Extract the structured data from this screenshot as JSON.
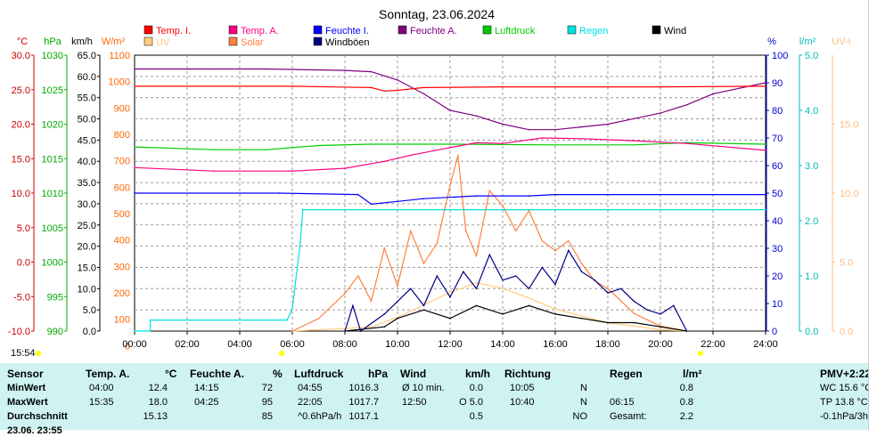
{
  "title": "Sonntag, 23.06.2024",
  "colors": {
    "temp_i": "#ff0000",
    "temp_a": "#ff0080",
    "feuchte_i": "#0000ff",
    "feuchte_a": "#800080",
    "luftdruck": "#00cc00",
    "regen": "#00e0e0",
    "wind": "#000000",
    "uv": "#ffcc80",
    "solar": "#ff8040",
    "windboeen": "#000080",
    "grid": "#9a9a9a",
    "panel_bg": "#cff3f3"
  },
  "legend": [
    {
      "label": "Temp. I.",
      "color": "#ff0000",
      "text_color": "#ff0000"
    },
    {
      "label": "Temp. A.",
      "color": "#ff0080",
      "text_color": "#ff0080"
    },
    {
      "label": "Feuchte I.",
      "color": "#0000ff",
      "text_color": "#0000ff"
    },
    {
      "label": "Feuchte A.",
      "color": "#800080",
      "text_color": "#800080"
    },
    {
      "label": "Luftdruck",
      "color": "#00cc00",
      "text_color": "#00cc00"
    },
    {
      "label": "Regen",
      "color": "#00e0e0",
      "text_color": "#00e0e0"
    },
    {
      "label": "Wind",
      "color": "#000000",
      "text_color": "#000000"
    },
    {
      "label": "UV",
      "color": "#ffcc80",
      "text_color": "#ffcc80"
    },
    {
      "label": "Solar",
      "color": "#ff8040",
      "text_color": "#ff8040"
    },
    {
      "label": "Windböen",
      "color": "#000080",
      "text_color": "#000000"
    }
  ],
  "axes": {
    "temp": {
      "unit": "°C",
      "ticks": [
        "30.0",
        "25.0",
        "20.0",
        "15.0",
        "10.0",
        "5.0",
        "0.0",
        "-5.0",
        "-10.0"
      ]
    },
    "pressure": {
      "unit": "hPa",
      "ticks": [
        "1030",
        "1025",
        "1020",
        "1015",
        "1010",
        "1005",
        "1000",
        "995",
        "990"
      ]
    },
    "wind": {
      "unit": "km/h",
      "ticks": [
        "65.0",
        "60.0",
        "55.0",
        "50.0",
        "45.0",
        "40.0",
        "35.0",
        "30.0",
        "25.0",
        "20.0",
        "15.0",
        "10.0",
        "5.0",
        "0.0"
      ]
    },
    "solar": {
      "unit": "W/m²",
      "ticks": [
        "1100",
        "1000",
        "900",
        "800",
        "700",
        "600",
        "500",
        "400",
        "300",
        "200",
        "100",
        "0"
      ]
    },
    "humidity": {
      "unit": "%",
      "ticks": [
        "100",
        "90",
        "80",
        "70",
        "60",
        "50",
        "40",
        "30",
        "20",
        "10",
        "0"
      ]
    },
    "rain": {
      "unit": "l/m²",
      "ticks": [
        "5.0",
        "4.0",
        "3.0",
        "2.0",
        "1.0",
        "0.0"
      ]
    },
    "uv": {
      "unit": "UV-I",
      "ticks": [
        "15.0",
        "10.0",
        "5.0",
        "0.0"
      ]
    },
    "time": {
      "ticks": [
        "00:00",
        "02:00",
        "04:00",
        "06:00",
        "08:00",
        "10:00",
        "12:00",
        "14:00",
        "16:00",
        "18:00",
        "20:00",
        "22:00",
        "24:00"
      ]
    }
  },
  "current_time": "15:54",
  "chart_data": {
    "type": "line",
    "title": "Sonntag, 23.06.2024",
    "x_unit": "hour of day",
    "xlim": [
      0,
      24
    ],
    "series": [
      {
        "name": "Temp. I.",
        "axis": "temp °C",
        "points": [
          [
            0,
            25.5
          ],
          [
            6,
            25.5
          ],
          [
            9,
            25.3
          ],
          [
            9.5,
            24.8
          ],
          [
            10,
            24.9
          ],
          [
            11,
            25.3
          ],
          [
            14,
            25.4
          ],
          [
            20,
            25.4
          ],
          [
            24,
            25.5
          ]
        ]
      },
      {
        "name": "Temp. A.",
        "axis": "temp °C",
        "points": [
          [
            0,
            13.7
          ],
          [
            3,
            13.2
          ],
          [
            6,
            13.2
          ],
          [
            8,
            13.6
          ],
          [
            9.5,
            14.6
          ],
          [
            10.5,
            15.5
          ],
          [
            12,
            16.6
          ],
          [
            13,
            17.3
          ],
          [
            14,
            17.2
          ],
          [
            15.5,
            18.0
          ],
          [
            17,
            17.9
          ],
          [
            19,
            17.6
          ],
          [
            21,
            17.2
          ],
          [
            24,
            16.2
          ]
        ]
      },
      {
        "name": "Feuchte I.",
        "axis": "humidity %",
        "points": [
          [
            0,
            50
          ],
          [
            5.5,
            50
          ],
          [
            8.5,
            49.5
          ],
          [
            9,
            46
          ],
          [
            10,
            47
          ],
          [
            11,
            48
          ],
          [
            13,
            49
          ],
          [
            15,
            49
          ],
          [
            16,
            49.5
          ],
          [
            18,
            49.5
          ],
          [
            24,
            49.5
          ]
        ]
      },
      {
        "name": "Feuchte A.",
        "axis": "humidity %",
        "points": [
          [
            0,
            95
          ],
          [
            3,
            95
          ],
          [
            5,
            95
          ],
          [
            8,
            94.5
          ],
          [
            9,
            94
          ],
          [
            10,
            91
          ],
          [
            11,
            86
          ],
          [
            12,
            80
          ],
          [
            13,
            78
          ],
          [
            14,
            75
          ],
          [
            15,
            73
          ],
          [
            16,
            73
          ],
          [
            17,
            74
          ],
          [
            18,
            75
          ],
          [
            19,
            77
          ],
          [
            20,
            79
          ],
          [
            21,
            82
          ],
          [
            22,
            86
          ],
          [
            23,
            88
          ],
          [
            24,
            90
          ]
        ]
      },
      {
        "name": "Luftdruck",
        "axis": "pressure hPa",
        "points": [
          [
            0,
            1016.7
          ],
          [
            3,
            1016.3
          ],
          [
            5,
            1016.3
          ],
          [
            7,
            1016.9
          ],
          [
            9,
            1017.1
          ],
          [
            12,
            1017.1
          ],
          [
            16,
            1017.0
          ],
          [
            19,
            1017.0
          ],
          [
            21,
            1017.3
          ],
          [
            24,
            1017.1
          ]
        ]
      },
      {
        "name": "Regen",
        "axis": "rain l/m²",
        "points": [
          [
            0,
            0.0
          ],
          [
            0.6,
            0.0
          ],
          [
            0.6,
            0.2
          ],
          [
            5.8,
            0.2
          ],
          [
            6.0,
            0.4
          ],
          [
            6.3,
            1.6
          ],
          [
            6.4,
            2.2
          ],
          [
            24,
            2.2
          ]
        ]
      },
      {
        "name": "Solar",
        "axis": "solar W/m²",
        "points": [
          [
            6,
            0
          ],
          [
            7,
            50
          ],
          [
            8,
            150
          ],
          [
            8.5,
            220
          ],
          [
            9,
            120
          ],
          [
            9.5,
            330
          ],
          [
            10,
            180
          ],
          [
            10.5,
            400
          ],
          [
            11,
            270
          ],
          [
            11.5,
            350
          ],
          [
            12,
            580
          ],
          [
            12.3,
            700
          ],
          [
            12.6,
            400
          ],
          [
            13,
            300
          ],
          [
            13.5,
            560
          ],
          [
            14,
            500
          ],
          [
            14.5,
            400
          ],
          [
            15,
            480
          ],
          [
            15.5,
            360
          ],
          [
            16,
            320
          ],
          [
            16.5,
            360
          ],
          [
            17,
            270
          ],
          [
            17.5,
            200
          ],
          [
            18,
            170
          ],
          [
            18.5,
            120
          ],
          [
            19,
            70
          ],
          [
            20,
            20
          ],
          [
            21,
            0
          ]
        ]
      },
      {
        "name": "UV",
        "axis": "UV-I",
        "points": [
          [
            6,
            0
          ],
          [
            9,
            0.3
          ],
          [
            10,
            1.0
          ],
          [
            12,
            2.8
          ],
          [
            13,
            3.5
          ],
          [
            14,
            3.1
          ],
          [
            15,
            2.4
          ],
          [
            16,
            1.6
          ],
          [
            18,
            0.6
          ],
          [
            20,
            0.1
          ],
          [
            21,
            0
          ]
        ]
      },
      {
        "name": "Wind",
        "axis": "wind km/h",
        "points": [
          [
            8,
            0
          ],
          [
            9.5,
            1
          ],
          [
            10,
            3
          ],
          [
            11,
            5
          ],
          [
            12,
            3
          ],
          [
            13,
            6
          ],
          [
            14,
            4
          ],
          [
            15,
            6
          ],
          [
            16,
            4
          ],
          [
            17,
            3
          ],
          [
            18,
            2
          ],
          [
            19,
            2
          ],
          [
            20,
            1
          ],
          [
            21,
            0
          ]
        ]
      },
      {
        "name": "Windböen",
        "axis": "wind km/h",
        "points": [
          [
            8,
            0
          ],
          [
            8.3,
            6
          ],
          [
            8.6,
            0
          ],
          [
            9.5,
            4
          ],
          [
            10.5,
            10
          ],
          [
            11,
            6
          ],
          [
            11.5,
            13
          ],
          [
            12,
            8
          ],
          [
            12.5,
            14
          ],
          [
            13,
            10
          ],
          [
            13.5,
            18
          ],
          [
            14,
            12
          ],
          [
            14.5,
            13
          ],
          [
            15,
            10
          ],
          [
            15.5,
            15
          ],
          [
            16,
            11
          ],
          [
            16.5,
            19
          ],
          [
            17,
            14
          ],
          [
            17.5,
            12
          ],
          [
            18,
            9
          ],
          [
            18.5,
            10
          ],
          [
            19,
            7
          ],
          [
            19.5,
            5
          ],
          [
            20,
            4
          ],
          [
            20.5,
            6
          ],
          [
            21,
            0
          ]
        ]
      }
    ]
  },
  "stats": {
    "headers": {
      "sensor": "Sensor",
      "temp_a": "Temp. A.",
      "temp_unit": "°C",
      "feuchte": "Feuchte A.",
      "feuchte_unit": "%",
      "luftdruck": "Luftdruck",
      "luftdruck_unit": "hPa",
      "wind": "Wind",
      "wind_unit": "km/h",
      "richtung": "Richtung",
      "regen": "Regen",
      "regen_unit": "l/m²",
      "pmv": "PMV+2:22"
    },
    "rows": [
      {
        "label": "MinWert",
        "t_time": "04:00",
        "t_val": "12.4",
        "f_time": "14:15",
        "f_val": "72",
        "l_time": "04:55",
        "l_val": "1016.3",
        "w_label": "Ø 10 min.",
        "w_val": "0.0",
        "r_time": "10:05",
        "r_dir": "N",
        "rg_time": "",
        "rg_val": "0.8",
        "extra": "WC 15.6 °C"
      },
      {
        "label": "MaxWert",
        "t_time": "15:35",
        "t_val": "18.0",
        "f_time": "04:25",
        "f_val": "95",
        "l_time": "22:05",
        "l_val": "1017.7",
        "w_label": "12:50",
        "w_val": "O 5.0",
        "r_time": "10:40",
        "r_dir": "N",
        "rg_time": "06:15",
        "rg_val": "0.8",
        "extra": "TP 13.8 °C"
      },
      {
        "label": "Durchschnitt",
        "t_time": "",
        "t_val": "15.13",
        "f_time": "",
        "f_val": "85",
        "l_time": "^0.6hPa/h",
        "l_val": "1017.1",
        "w_label": "",
        "w_val": "0.5",
        "r_time": "",
        "r_dir": "NO",
        "rg_time": "Gesamt:",
        "rg_val": "2.2",
        "extra": "-0.1hPa/3h"
      }
    ],
    "partial_row_label": "23.06. 23:55"
  }
}
